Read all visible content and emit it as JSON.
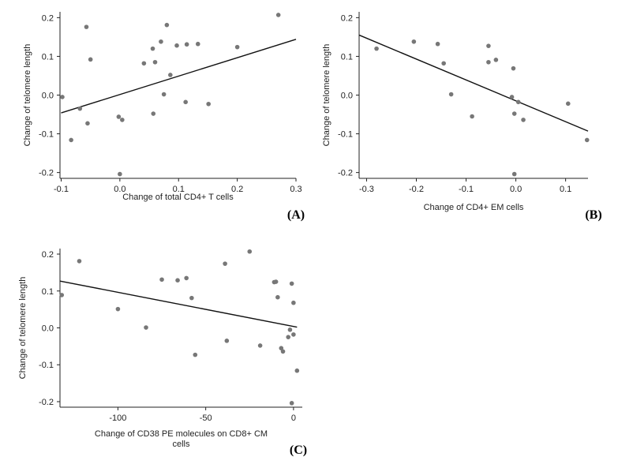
{
  "colors": {
    "point": "#777777",
    "fit_line": "#111111",
    "axis": "#222222"
  },
  "chart_data": [
    {
      "type": "scatter",
      "panel_label": "(A)",
      "xlabel": "Change of total CD4+ T cells",
      "xlabel_lines": [
        "Change of total CD4+ T cells"
      ],
      "ylabel": "Change of telomere length",
      "xlim": [
        -0.102,
        0.3
      ],
      "ylim": [
        -0.215,
        0.215
      ],
      "x_ticks": [
        -0.1,
        0,
        0.1,
        0.2,
        0.3
      ],
      "x_tick_labels": [
        "-0.1",
        "0.0",
        "0.1",
        "0.2",
        "0.3"
      ],
      "y_ticks": [
        -0.2,
        -0.1,
        0,
        0.1,
        0.2
      ],
      "y_tick_labels": [
        "-0.2",
        "-0.1",
        "0.0",
        "0.1",
        "0.2"
      ],
      "fit_line": {
        "x": [
          -0.1,
          0.3
        ],
        "y": [
          -0.046,
          0.144
        ]
      },
      "points": [
        [
          0.27,
          0.207
        ],
        [
          0.08,
          0.181
        ],
        [
          -0.057,
          0.176
        ],
        [
          0.07,
          0.138
        ],
        [
          0.114,
          0.131
        ],
        [
          0.133,
          0.132
        ],
        [
          0.097,
          0.128
        ],
        [
          0.2,
          0.124
        ],
        [
          0.056,
          0.12
        ],
        [
          -0.05,
          0.092
        ],
        [
          0.041,
          0.082
        ],
        [
          0.06,
          0.085
        ],
        [
          0.086,
          0.052
        ],
        [
          -0.098,
          -0.005
        ],
        [
          0.075,
          0.002
        ],
        [
          0.112,
          -0.018
        ],
        [
          0.151,
          -0.023
        ],
        [
          -0.068,
          -0.035
        ],
        [
          0.057,
          -0.048
        ],
        [
          -0.002,
          -0.056
        ],
        [
          0.004,
          -0.064
        ],
        [
          -0.055,
          -0.073
        ],
        [
          -0.083,
          -0.116
        ],
        [
          0.0,
          -0.204
        ]
      ]
    },
    {
      "type": "scatter",
      "panel_label": "(B)",
      "xlabel": "Change of CD4+ EM cells",
      "xlabel_lines": [
        "Change of CD4+ EM cells"
      ],
      "ylabel": "Change of telomere length",
      "xlim": [
        -0.315,
        0.145
      ],
      "ylim": [
        -0.215,
        0.215
      ],
      "x_ticks": [
        -0.3,
        -0.2,
        -0.1,
        0,
        0.1
      ],
      "x_tick_labels": [
        "-0.3",
        "-0.2",
        "-0.1",
        "0.0",
        "0.1"
      ],
      "y_ticks": [
        -0.2,
        -0.1,
        0,
        0.1,
        0.2
      ],
      "y_tick_labels": [
        "-0.2",
        "-0.1",
        "0.0",
        "0.1",
        "0.2"
      ],
      "fit_line": {
        "x": [
          -0.315,
          0.145
        ],
        "y": [
          0.155,
          -0.093
        ]
      },
      "points": [
        [
          -0.28,
          0.12
        ],
        [
          -0.205,
          0.138
        ],
        [
          -0.157,
          0.132
        ],
        [
          -0.055,
          0.127
        ],
        [
          -0.145,
          0.082
        ],
        [
          -0.055,
          0.085
        ],
        [
          -0.04,
          0.091
        ],
        [
          -0.005,
          0.069
        ],
        [
          -0.13,
          0.002
        ],
        [
          -0.008,
          -0.005
        ],
        [
          0.005,
          -0.018
        ],
        [
          0.105,
          -0.022
        ],
        [
          -0.003,
          -0.048
        ],
        [
          -0.088,
          -0.055
        ],
        [
          0.015,
          -0.064
        ],
        [
          0.143,
          -0.116
        ],
        [
          -0.003,
          -0.204
        ]
      ]
    },
    {
      "type": "scatter",
      "panel_label": "(C)",
      "xlabel": "Change of CD38 PE molecules on CD8+ CM cells",
      "xlabel_lines": [
        "Change of CD38 PE molecules on CD8+ CM",
        "cells"
      ],
      "ylabel": "Change of telomere length",
      "xlim": [
        -133,
        5
      ],
      "ylim": [
        -0.215,
        0.215
      ],
      "x_ticks": [
        -100,
        -50,
        0
      ],
      "x_tick_labels": [
        "-100",
        "-50",
        "0"
      ],
      "y_ticks": [
        -0.2,
        -0.1,
        0,
        0.1,
        0.2
      ],
      "y_tick_labels": [
        "-0.2",
        "-0.1",
        "0.0",
        "0.1",
        "0.2"
      ],
      "fit_line": {
        "x": [
          -133,
          2
        ],
        "y": [
          0.127,
          0.002
        ]
      },
      "points": [
        [
          -132,
          0.089
        ],
        [
          -122,
          0.181
        ],
        [
          -100,
          0.051
        ],
        [
          -84,
          0.001
        ],
        [
          -75,
          0.131
        ],
        [
          -66,
          0.129
        ],
        [
          -61,
          0.135
        ],
        [
          -58,
          0.081
        ],
        [
          -56,
          -0.073
        ],
        [
          -39,
          0.174
        ],
        [
          -38,
          -0.035
        ],
        [
          -25,
          0.207
        ],
        [
          -19,
          -0.048
        ],
        [
          -11,
          0.124
        ],
        [
          -10,
          0.125
        ],
        [
          -9,
          0.083
        ],
        [
          -7,
          -0.055
        ],
        [
          -6,
          -0.064
        ],
        [
          -3,
          -0.025
        ],
        [
          -2,
          -0.005
        ],
        [
          -1,
          0.12
        ],
        [
          0,
          -0.018
        ],
        [
          0,
          0.068
        ],
        [
          2,
          -0.116
        ],
        [
          -1,
          -0.204
        ]
      ]
    }
  ]
}
